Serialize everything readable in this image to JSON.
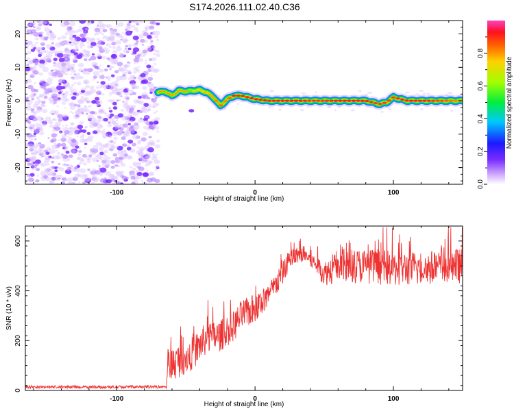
{
  "title": "S174.2026.111.02.40.C36",
  "chart_data": [
    {
      "type": "heatmap",
      "name": "spectrogram",
      "xlabel": "Height of straight line (km)",
      "ylabel": "Frequency (Hz)",
      "xlim": [
        -166,
        150
      ],
      "ylim": [
        -25,
        24
      ],
      "xticks": [
        -100,
        0,
        100
      ],
      "yticks": [
        -20,
        -10,
        0,
        10,
        20
      ],
      "noise_region": {
        "x_range": [
          -166,
          -70
        ],
        "y_range": [
          -25,
          24
        ],
        "level": 0.05
      },
      "signal_track": {
        "x": [
          -70,
          -65,
          -60,
          -55,
          -50,
          -45,
          -40,
          -35,
          -30,
          -25,
          -20,
          -15,
          -10,
          -5,
          0,
          10,
          20,
          30,
          40,
          50,
          60,
          70,
          80,
          85,
          90,
          95,
          100,
          110,
          120,
          130,
          140,
          150
        ],
        "frequency": [
          2.5,
          2.8,
          1.5,
          3,
          2.8,
          3,
          3.2,
          2.5,
          1,
          -1.5,
          0.5,
          1.5,
          1.5,
          1,
          0.5,
          0,
          0,
          0,
          0,
          0,
          0,
          0,
          0,
          -0.5,
          -1,
          -0.5,
          1,
          0,
          0,
          0,
          0,
          0
        ],
        "amplitude": [
          0.3,
          0.35,
          0.4,
          0.45,
          0.5,
          0.6,
          0.7,
          0.75,
          0.8,
          0.85,
          0.8,
          0.95,
          0.95,
          0.95,
          0.95,
          0.95,
          0.95,
          0.95,
          0.9,
          0.9,
          0.95,
          0.95,
          0.95,
          0.9,
          0.9,
          0.9,
          0.9,
          0.95,
          0.95,
          0.9,
          0.85,
          0.8
        ]
      },
      "colorbar": {
        "label": "Normalized spectral amplitude",
        "range": [
          0,
          1
        ],
        "ticks": [
          0.0,
          0.2,
          0.4,
          0.6,
          0.8
        ]
      }
    },
    {
      "type": "line",
      "name": "snr",
      "xlabel": "Height of straight line (km)",
      "ylabel": "SNR (10 * v/v)",
      "xlim": [
        -166,
        150
      ],
      "ylim": [
        0,
        660
      ],
      "xticks": [
        -100,
        0,
        100
      ],
      "yticks": [
        0,
        200,
        400,
        600
      ],
      "color": "#ee3333",
      "envelope": {
        "x": [
          -166,
          -64,
          -63,
          -55,
          -45,
          -35,
          -25,
          -15,
          -10,
          0,
          10,
          20,
          25,
          35,
          45,
          50,
          60,
          80,
          100,
          120,
          150
        ],
        "y": [
          15,
          15,
          100,
          120,
          150,
          210,
          220,
          260,
          300,
          330,
          380,
          470,
          530,
          550,
          500,
          470,
          500,
          500,
          490,
          490,
          500
        ]
      },
      "noise_amplitude": {
        "x": [
          -166,
          -64,
          -63,
          0,
          20,
          40,
          60,
          150
        ],
        "y": [
          8,
          8,
          70,
          60,
          45,
          30,
          70,
          70
        ]
      }
    }
  ]
}
